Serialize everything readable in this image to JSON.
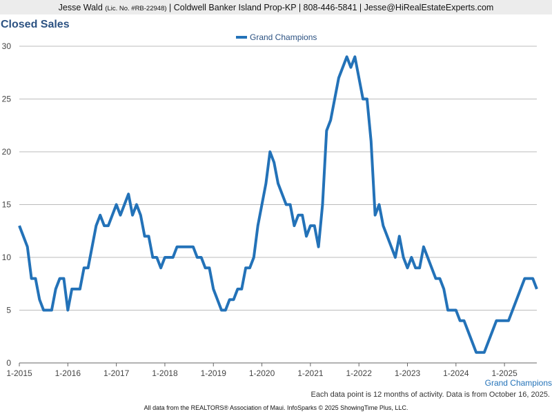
{
  "header": {
    "name": "Jesse Wald",
    "license": "(Lic. No. #RB-22948)",
    "details": "| Coldwell Banker Island Prop-KP | 808-446-5841 | Jesse@HiRealEstateExperts.com"
  },
  "footer": {
    "note": "Each data point is 12 months of activity. Data is from October 16, 2025.",
    "credit": "All data from the REALTORS® Association of Maui. InfoSparks © 2025 ShowingTime Plus, LLC."
  },
  "chart_data": {
    "type": "line",
    "title": "Closed Sales",
    "categories": [
      "1-2015",
      null,
      null,
      null,
      null,
      null,
      null,
      null,
      null,
      null,
      null,
      null,
      "1-2016",
      null,
      null,
      null,
      null,
      null,
      null,
      null,
      null,
      null,
      null,
      null,
      "1-2017",
      null,
      null,
      null,
      null,
      null,
      null,
      null,
      null,
      null,
      null,
      null,
      "1-2018",
      null,
      null,
      null,
      null,
      null,
      null,
      null,
      null,
      null,
      null,
      null,
      "1-2019",
      null,
      null,
      null,
      null,
      null,
      null,
      null,
      null,
      null,
      null,
      null,
      "1-2020",
      null,
      null,
      null,
      null,
      null,
      null,
      null,
      null,
      null,
      null,
      null,
      "1-2021",
      null,
      null,
      null,
      null,
      null,
      null,
      null,
      null,
      null,
      null,
      null,
      "1-2022",
      null,
      null,
      null,
      null,
      null,
      null,
      null,
      null,
      null,
      null,
      null,
      "1-2023",
      null,
      null,
      null,
      null,
      null,
      null,
      null,
      null,
      null,
      null,
      null,
      "1-2024",
      null,
      null,
      null,
      null,
      null,
      null,
      null,
      null,
      null,
      null,
      null,
      "1-2025",
      null,
      null,
      null,
      null,
      null,
      null,
      null,
      null
    ],
    "series": [
      {
        "name": "Grand Champions",
        "color": "#2372b8",
        "values": [
          13,
          12,
          11,
          8,
          8,
          6,
          5,
          5,
          5,
          7,
          8,
          8,
          5,
          7,
          7,
          7,
          9,
          9,
          11,
          13,
          14,
          13,
          13,
          14,
          15,
          14,
          15,
          16,
          14,
          15,
          14,
          12,
          12,
          10,
          10,
          9,
          10,
          10,
          10,
          11,
          11,
          11,
          11,
          11,
          10,
          10,
          9,
          9,
          7,
          6,
          5,
          5,
          6,
          6,
          7,
          7,
          9,
          9,
          10,
          13,
          15,
          17,
          20,
          19,
          17,
          16,
          15,
          15,
          13,
          14,
          14,
          12,
          13,
          13,
          11,
          15,
          22,
          23,
          25,
          27,
          28,
          29,
          28,
          29,
          27,
          25,
          25,
          21,
          14,
          15,
          13,
          12,
          11,
          10,
          12,
          10,
          9,
          10,
          9,
          9,
          11,
          10,
          9,
          8,
          8,
          7,
          5,
          5,
          5,
          4,
          4,
          3,
          2,
          1,
          1,
          1,
          2,
          3,
          4,
          4,
          4,
          4,
          5,
          6,
          7,
          8,
          8,
          8,
          7
        ]
      }
    ],
    "ylim": [
      0,
      30
    ],
    "yticks": [
      0,
      5,
      10,
      15,
      20,
      25,
      30
    ],
    "grid": true,
    "legend": "top"
  }
}
